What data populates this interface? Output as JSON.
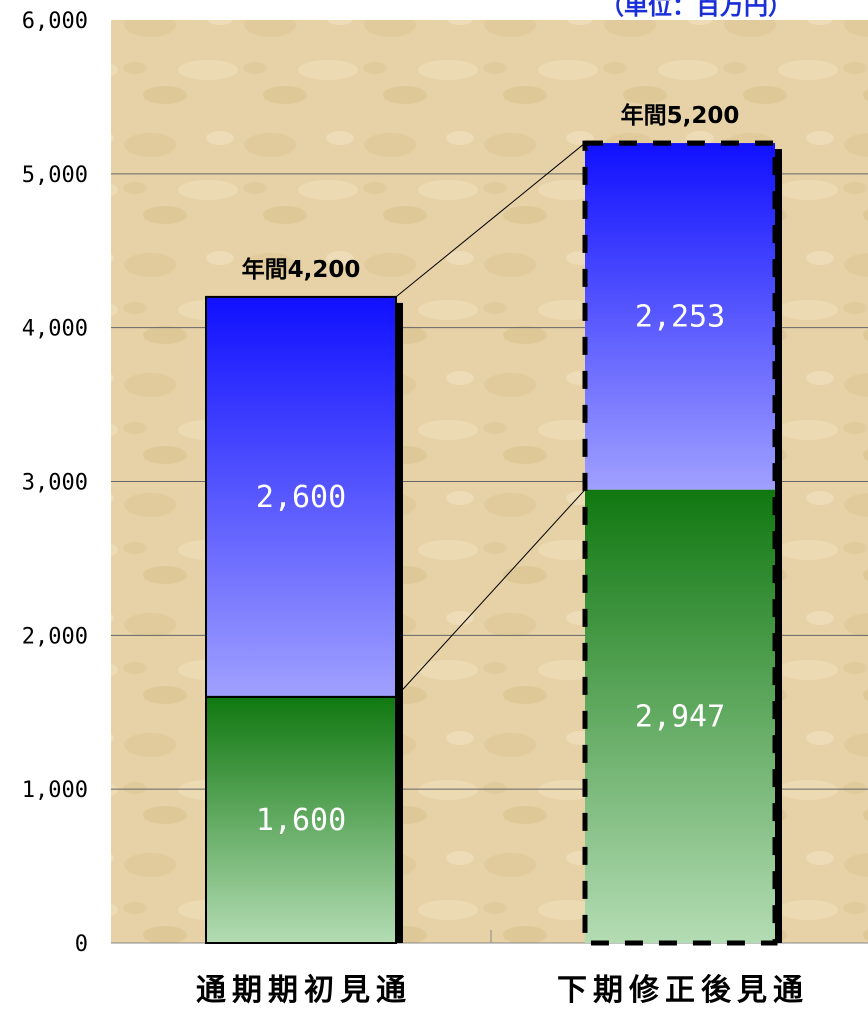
{
  "unit_label": "（単位：百万円）",
  "colors": {
    "blue_top": "#1010ff",
    "blue_bottom": "#a0a0ff",
    "green_top": "#107810",
    "green_bottom": "#b4dcb4",
    "plot_bg": "#e8d4a8"
  },
  "chart_data": {
    "type": "bar",
    "stacked": true,
    "categories": [
      "通期期初見通",
      "下期修正後見通"
    ],
    "series": [
      {
        "values": [
          1600,
          2947
        ],
        "value_labels": [
          "1,600",
          "2,947"
        ]
      },
      {
        "values": [
          2600,
          2253
        ],
        "value_labels": [
          "2,600",
          "2,253"
        ]
      }
    ],
    "totals": [
      "年間4,200",
      "年間5,200"
    ],
    "y_ticks": [
      "0",
      "1,000",
      "2,000",
      "3,000",
      "4,000",
      "5,000",
      "6,000"
    ],
    "ylim": [
      0,
      6000
    ],
    "grid": true,
    "second_bar_dashed_border": true
  }
}
